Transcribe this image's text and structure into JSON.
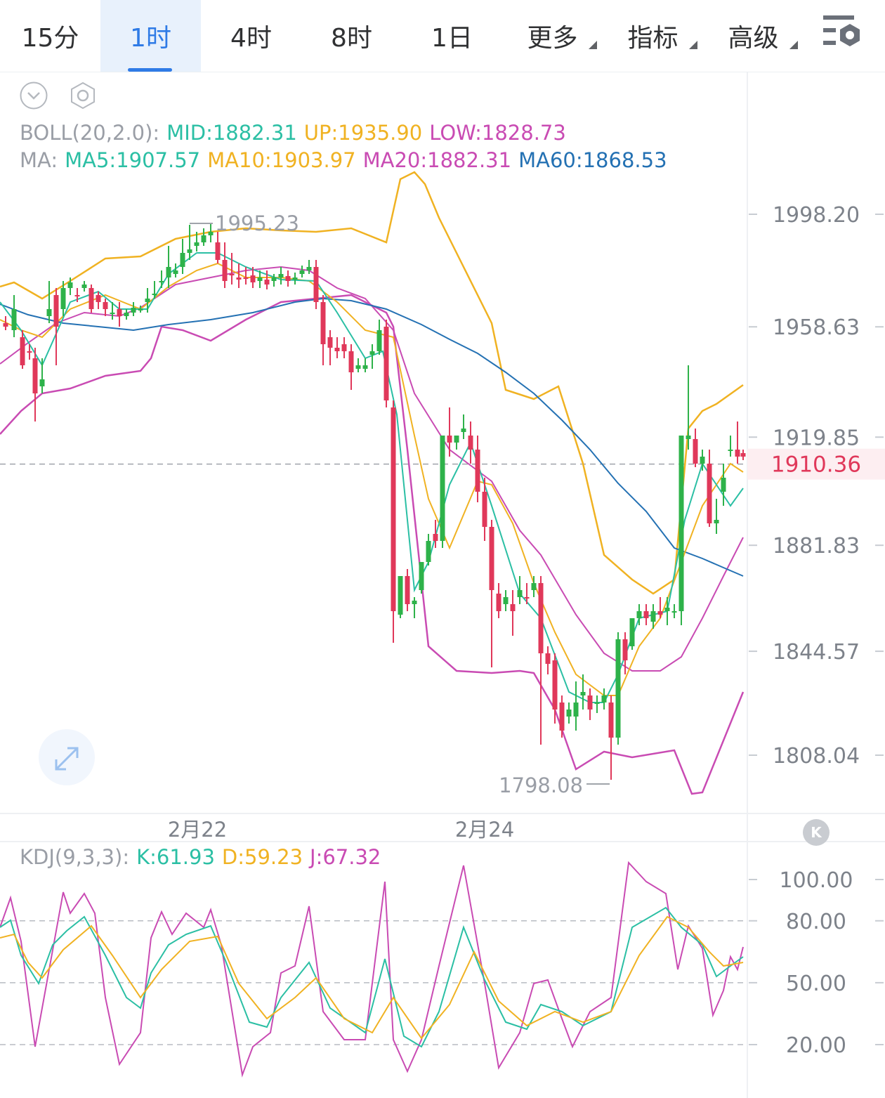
{
  "tabs": [
    {
      "label": "15分",
      "active": false,
      "caret": false
    },
    {
      "label": "1时",
      "active": true,
      "caret": false
    },
    {
      "label": "4时",
      "active": false,
      "caret": false
    },
    {
      "label": "8时",
      "active": false,
      "caret": false
    },
    {
      "label": "1日",
      "active": false,
      "caret": false
    },
    {
      "label": "更多",
      "active": false,
      "caret": true
    },
    {
      "label": "指标",
      "active": false,
      "caret": true
    },
    {
      "label": "高级",
      "active": false,
      "caret": true
    }
  ],
  "icons": {
    "collapse": "chevron-down-icon",
    "settings": "hexagon-settings-icon",
    "tabbar_settings": "chart-settings-icon",
    "expand": "expand-arrows-icon",
    "k": "k-logo-icon"
  },
  "legend": {
    "boll_name": "BOLL(20,2.0):",
    "boll_mid": "MID:1882.31",
    "boll_up": "UP:1935.90",
    "boll_low": "LOW:1828.73",
    "ma_name": "MA:",
    "ma5": "MA5:1907.57",
    "ma10": "MA10:1903.97",
    "ma20": "MA20:1882.31",
    "ma60": "MA60:1868.53",
    "kdj_name": "KDJ(9,3,3):",
    "kdj_k": "K:61.93",
    "kdj_d": "D:59.23",
    "kdj_j": "J:67.32"
  },
  "colors": {
    "up": "#2eb24a",
    "down": "#e0385a",
    "mid_ma5": "#2bbfa4",
    "up_ma10": "#f0b222",
    "low_ma20": "#c94bb3",
    "ma60": "#2471b3",
    "current": "#e0385a"
  },
  "chart_data": [
    {
      "type": "candlestick",
      "interval": "1时",
      "y_ticks": [
        1998.2,
        1958.63,
        1919.85,
        1881.83,
        1844.57,
        1808.04
      ],
      "y_tick_labels": [
        "1998.20",
        "1958.63",
        "1919.85",
        "1881.83",
        "1844.57",
        "1808.04"
      ],
      "ylim": [
        1787,
        2018
      ],
      "x_labels": [
        "2月22",
        "2月24"
      ],
      "current_price": "1910.36",
      "high_marker": "1995.23",
      "low_marker": "1798.08",
      "grid": false
    },
    {
      "type": "line",
      "indicator": "KDJ(9,3,3)",
      "y_ticks": [
        100,
        80,
        50,
        20
      ],
      "y_tick_labels": [
        "100.00",
        "80.00",
        "50.00",
        "20.00"
      ],
      "ylim": [
        0,
        108
      ],
      "reference_lines": [
        80,
        50,
        20
      ]
    }
  ]
}
